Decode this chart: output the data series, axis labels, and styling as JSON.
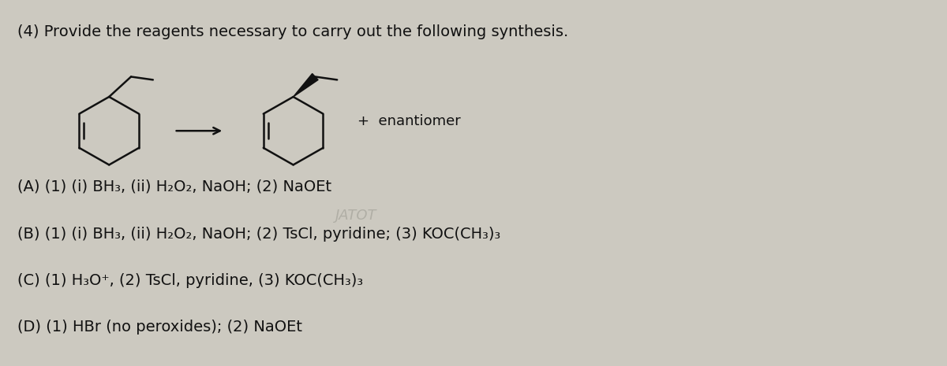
{
  "title": "(4) Provide the reagents necessary to carry out the following synthesis.",
  "answer_A": "(A) (1) (i) BH₃, (ii) H₂O₂, NaOH; (2) NaOEt",
  "answer_B": "(B) (1) (i) BH₃, (ii) H₂O₂, NaOH; (2) TsCl, pyridine; (3) KOC(CH₃)₃",
  "answer_C": "(C) (1) H₃O⁺, (2) TsCl, pyridine, (3) KOC(CH₃)₃",
  "answer_D": "(D) (1) HBr (no peroxides); (2) NaOEt",
  "enantiomer_label": "+  enantiomer",
  "watermark": "JATOT",
  "bg_color": "#ccc9c0",
  "text_color": "#111111",
  "title_fontsize": 14,
  "answer_fontsize": 14
}
